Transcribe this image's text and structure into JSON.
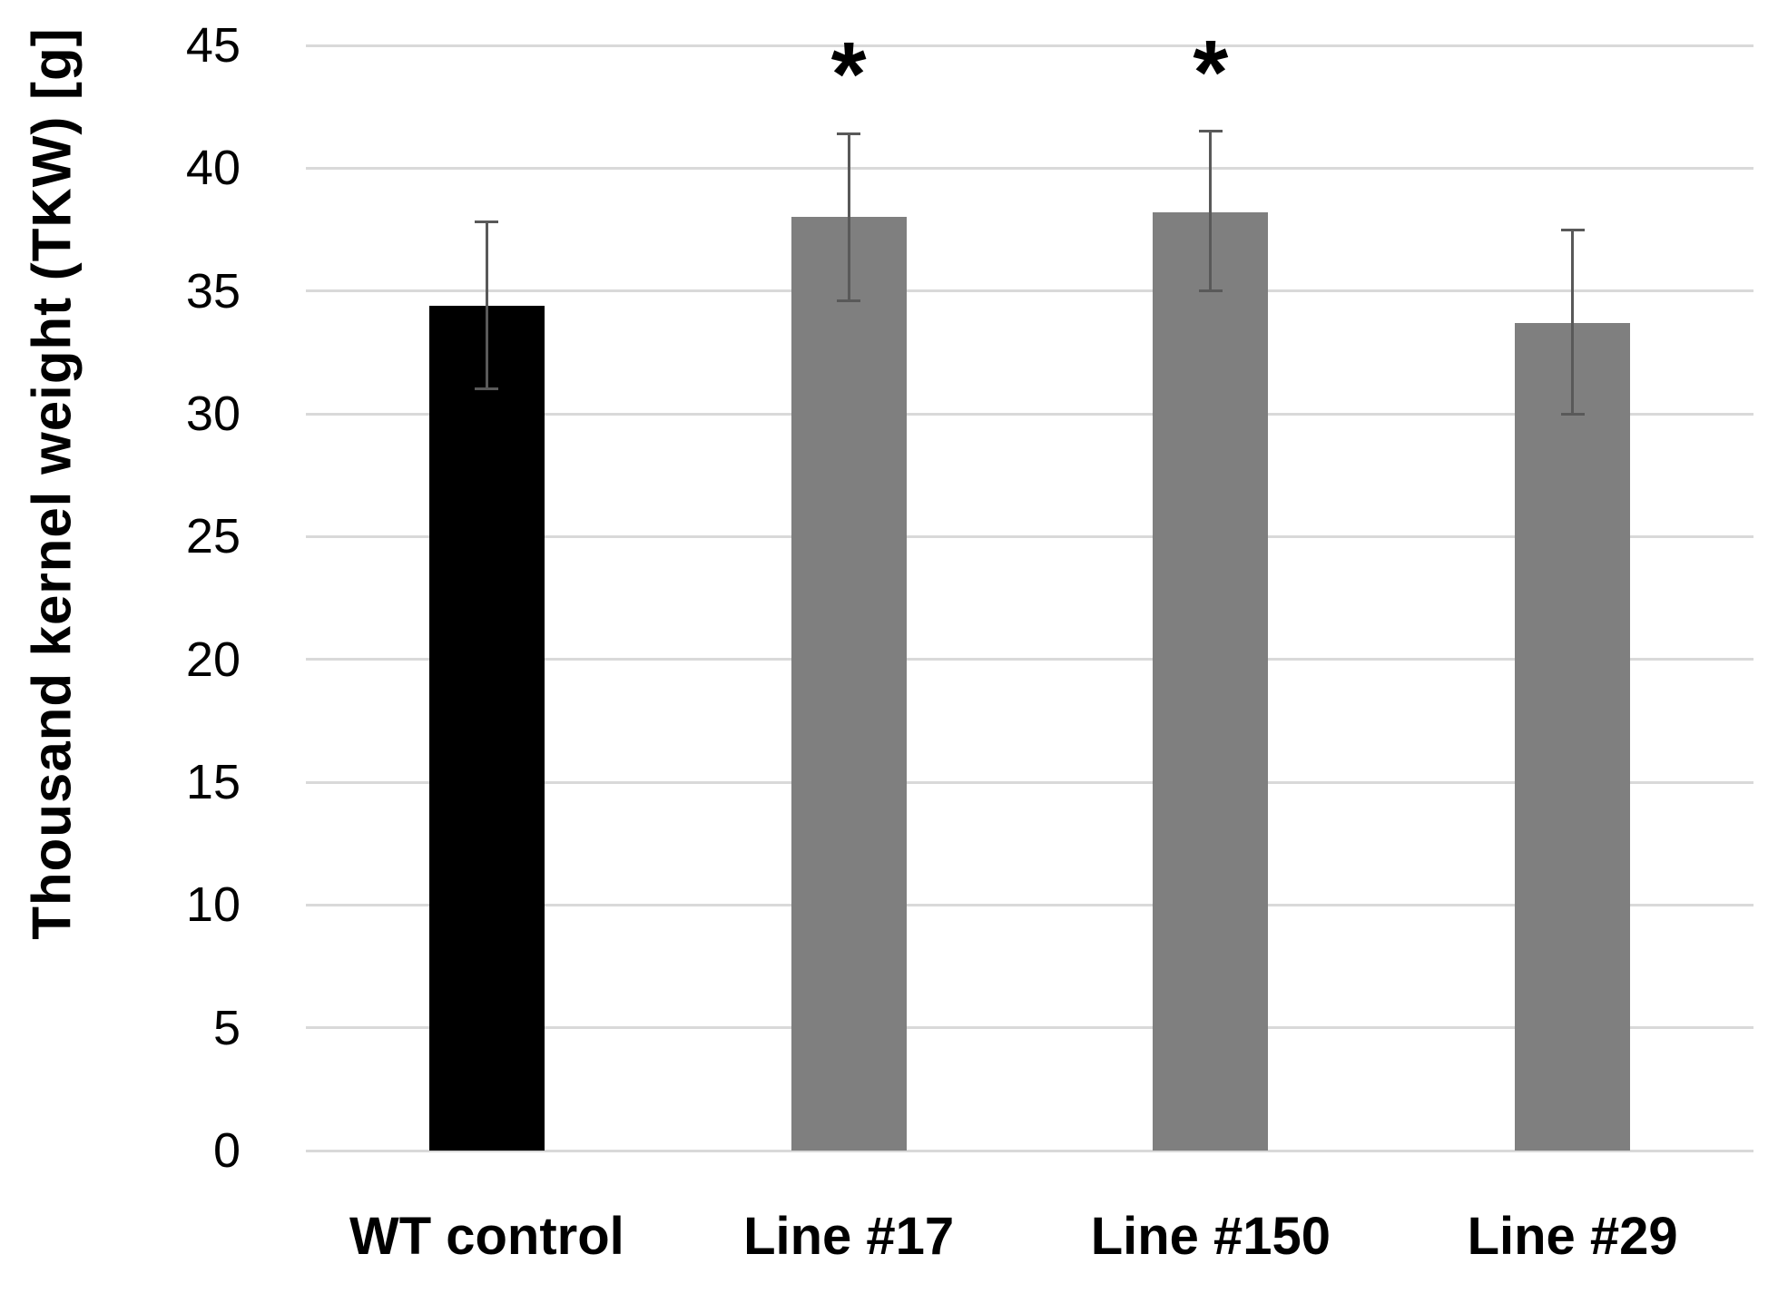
{
  "chart_data": {
    "type": "bar",
    "title": "",
    "ylabel": "Thousand kernel weight (TKW) [g]",
    "xlabel": "",
    "categories": [
      "WT control",
      "Line #17",
      "Line #150",
      "Line #29"
    ],
    "values": [
      34.4,
      38.0,
      38.2,
      33.7
    ],
    "error_upper": [
      37.8,
      41.4,
      41.5,
      37.5
    ],
    "error_lower": [
      31.0,
      34.6,
      35.0,
      30.0
    ],
    "significance_labels": [
      "",
      "*",
      "*",
      ""
    ],
    "bar_colors": [
      "#000000",
      "#7f7f7f",
      "#7f7f7f",
      "#7f7f7f"
    ],
    "ylim": [
      0,
      45
    ],
    "yticks": [
      0,
      5,
      10,
      15,
      20,
      25,
      30,
      35,
      40,
      45
    ],
    "grid": true,
    "legend": "none",
    "colors": {
      "gridline": "#d9d9d9",
      "errorbar": "#595959",
      "text": "#000000",
      "background": "#ffffff"
    }
  }
}
